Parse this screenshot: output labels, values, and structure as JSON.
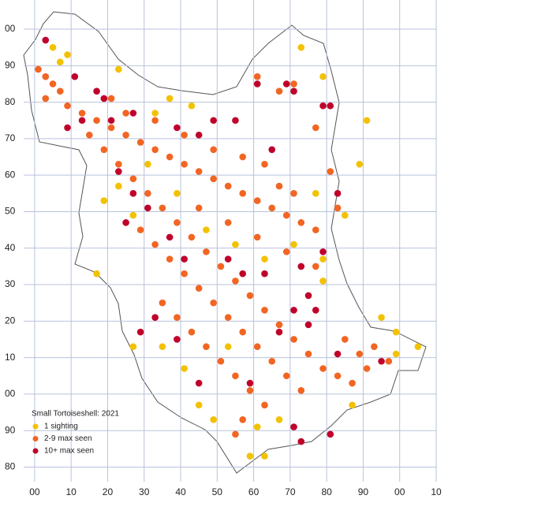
{
  "chart_data": {
    "type": "scatter",
    "title": "Small Tortoiseshell:  2021",
    "xlim": [
      -3,
      110
    ],
    "ylim": [
      76,
      208
    ],
    "grid": true,
    "xticks": [
      {
        "value": 0,
        "label": "00"
      },
      10,
      20,
      30,
      40,
      50,
      60,
      70,
      80,
      90,
      {
        "value": 100,
        "label": "00"
      },
      {
        "value": 110,
        "label": "10"
      }
    ],
    "yticks": [
      {
        "value": 200,
        "label": "00"
      },
      {
        "value": 190,
        "label": "90"
      },
      {
        "value": 180,
        "label": "80"
      },
      {
        "value": 170,
        "label": "70"
      },
      {
        "value": 160,
        "label": "60"
      },
      {
        "value": 150,
        "label": "50"
      },
      {
        "value": 140,
        "label": "40"
      },
      {
        "value": 130,
        "label": "30"
      },
      {
        "value": 120,
        "label": "20"
      },
      {
        "value": 110,
        "label": "10"
      },
      {
        "value": 100,
        "label": "00"
      },
      90,
      80
    ],
    "series": [
      {
        "name": "1 sighting",
        "color": "#f2c200",
        "x": [
          5,
          9,
          7,
          23,
          33,
          37,
          43,
          19,
          23,
          27,
          31,
          39,
          47,
          55,
          63,
          71,
          79,
          85,
          89,
          91,
          53,
          41,
          35,
          45,
          49,
          61,
          67,
          59,
          63,
          73,
          79,
          77,
          79,
          95,
          99,
          105,
          99,
          87,
          27,
          17
        ],
        "y": [
          195,
          193,
          191,
          189,
          177,
          181,
          179,
          153,
          157,
          149,
          163,
          155,
          145,
          141,
          137,
          141,
          137,
          149,
          163,
          175,
          113,
          107,
          113,
          97,
          93,
          91,
          93,
          83,
          83,
          195,
          187,
          155,
          131,
          121,
          117,
          113,
          111,
          97,
          113,
          133
        ]
      },
      {
        "name": "2-9 max seen",
        "color": "#f26522",
        "x": [
          1,
          3,
          5,
          7,
          3,
          9,
          13,
          17,
          21,
          25,
          29,
          33,
          37,
          41,
          45,
          49,
          53,
          57,
          61,
          65,
          69,
          73,
          77,
          15,
          19,
          23,
          27,
          31,
          35,
          39,
          43,
          47,
          51,
          55,
          59,
          63,
          67,
          71,
          75,
          79,
          33,
          41,
          49,
          57,
          63,
          67,
          71,
          29,
          33,
          37,
          41,
          45,
          49,
          53,
          57,
          61,
          65,
          69,
          73,
          45,
          53,
          61,
          69,
          77,
          35,
          39,
          43,
          47,
          51,
          55,
          59,
          63,
          57,
          55,
          85,
          89,
          93,
          97,
          83,
          87,
          91,
          21,
          25,
          67,
          71,
          61,
          77,
          81,
          83
        ],
        "y": [
          189,
          187,
          185,
          183,
          181,
          179,
          177,
          175,
          173,
          171,
          169,
          167,
          165,
          163,
          161,
          159,
          157,
          155,
          153,
          151,
          149,
          147,
          145,
          171,
          167,
          163,
          159,
          155,
          151,
          147,
          143,
          139,
          135,
          131,
          127,
          123,
          119,
          115,
          111,
          107,
          175,
          171,
          167,
          165,
          163,
          157,
          155,
          145,
          141,
          137,
          133,
          129,
          125,
          121,
          117,
          113,
          109,
          105,
          101,
          151,
          147,
          143,
          139,
          135,
          125,
          121,
          117,
          113,
          109,
          105,
          101,
          97,
          93,
          89,
          115,
          111,
          113,
          109,
          105,
          103,
          107,
          181,
          177,
          183,
          185,
          187,
          173,
          161,
          151
        ]
      },
      {
        "name": "10+ max seen",
        "color": "#c0002a",
        "x": [
          3,
          11,
          17,
          19,
          13,
          9,
          21,
          27,
          39,
          45,
          49,
          55,
          61,
          69,
          71,
          79,
          81,
          65,
          23,
          27,
          25,
          31,
          37,
          41,
          53,
          57,
          63,
          73,
          79,
          75,
          77,
          75,
          33,
          29,
          39,
          67,
          71,
          83,
          95,
          81,
          73,
          71,
          45,
          59,
          83
        ],
        "y": [
          197,
          187,
          183,
          181,
          175,
          173,
          175,
          177,
          173,
          171,
          175,
          175,
          185,
          185,
          183,
          179,
          179,
          167,
          161,
          155,
          147,
          151,
          143,
          137,
          137,
          133,
          133,
          135,
          139,
          127,
          123,
          119,
          121,
          117,
          115,
          117,
          123,
          111,
          109,
          89,
          87,
          91,
          103,
          103,
          155
        ]
      }
    ]
  }
}
